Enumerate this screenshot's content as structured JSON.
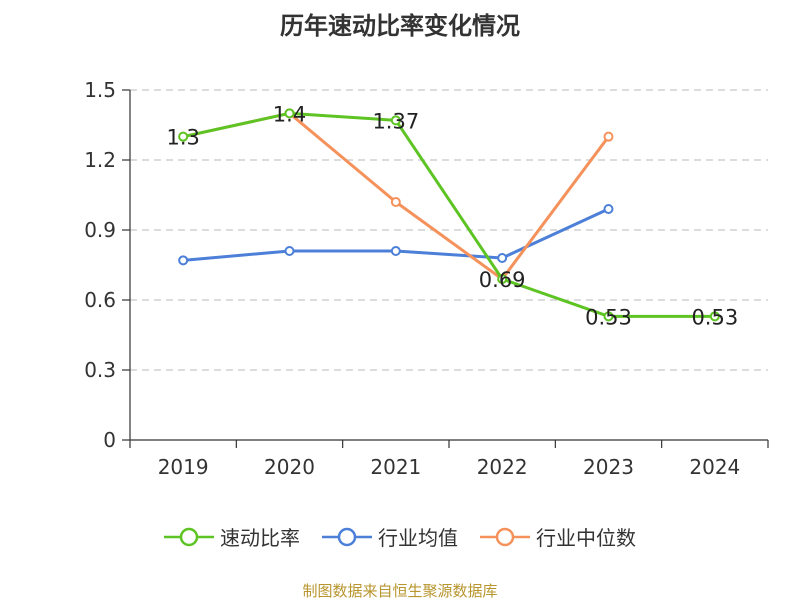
{
  "chart_data": {
    "type": "line",
    "title": "历年速动比率变化情况",
    "categories": [
      "2019",
      "2020",
      "2021",
      "2022",
      "2023",
      "2024"
    ],
    "ylim": [
      0,
      1.5
    ],
    "yticks": [
      "0",
      "0.3",
      "0.6",
      "0.9",
      "1.2",
      "1.5"
    ],
    "grid": true,
    "legend_position": "bottom",
    "series": [
      {
        "name": "速动比率",
        "color": "#5ec424",
        "values": [
          1.3,
          1.4,
          1.37,
          0.69,
          0.53,
          0.53
        ],
        "labels": [
          "1.3",
          "1.4",
          "1.37",
          "0.69",
          "0.53",
          "0.53"
        ],
        "show_labels": true
      },
      {
        "name": "行业均值",
        "color": "#4c7fd8",
        "values": [
          0.77,
          0.81,
          0.81,
          0.78,
          0.99,
          null
        ],
        "show_labels": false
      },
      {
        "name": "行业中位数",
        "color": "#f5925c",
        "values": [
          1.3,
          1.4,
          1.02,
          0.69,
          1.3,
          null
        ],
        "show_labels": false
      }
    ]
  },
  "source": "制图数据来自恒生聚源数据库"
}
